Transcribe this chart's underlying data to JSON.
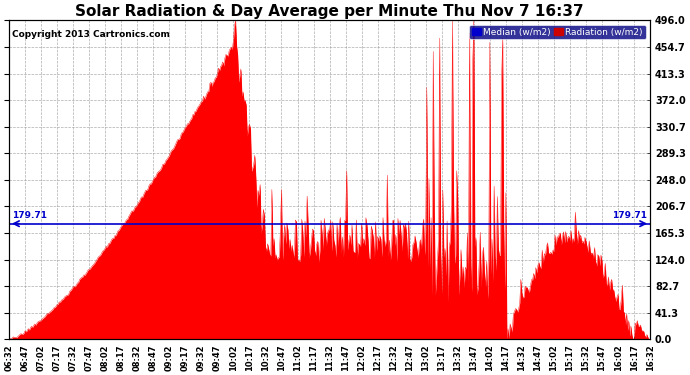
{
  "title": "Solar Radiation & Day Average per Minute Thu Nov 7 16:37",
  "copyright": "Copyright 2013 Cartronics.com",
  "ylabel_right": [
    "496.0",
    "454.7",
    "413.3",
    "372.0",
    "330.7",
    "289.3",
    "248.0",
    "206.7",
    "165.3",
    "124.0",
    "82.7",
    "41.3",
    "0.0"
  ],
  "yticks": [
    496.0,
    454.7,
    413.3,
    372.0,
    330.7,
    289.3,
    248.0,
    206.7,
    165.3,
    124.0,
    82.7,
    41.3,
    0.0
  ],
  "ymin": 0.0,
  "ymax": 496.0,
  "median_value": 179.71,
  "median_label": "179.71",
  "fill_color": "#ff0000",
  "line_color": "#0000cc",
  "background_color": "#ffffff",
  "grid_color": "#aaaaaa",
  "title_fontsize": 11,
  "legend_median_color": "#0000cc",
  "legend_radiation_color": "#cc0000",
  "xtick_labels": [
    "06:32",
    "06:47",
    "07:02",
    "07:17",
    "07:32",
    "07:47",
    "08:02",
    "08:17",
    "08:32",
    "08:47",
    "09:02",
    "09:17",
    "09:32",
    "09:47",
    "10:02",
    "10:17",
    "10:32",
    "10:47",
    "11:02",
    "11:17",
    "11:32",
    "11:47",
    "12:02",
    "12:17",
    "12:32",
    "12:47",
    "13:02",
    "13:17",
    "13:32",
    "13:47",
    "14:02",
    "14:17",
    "14:32",
    "14:47",
    "15:02",
    "15:17",
    "15:32",
    "15:47",
    "16:02",
    "16:17",
    "16:32"
  ]
}
